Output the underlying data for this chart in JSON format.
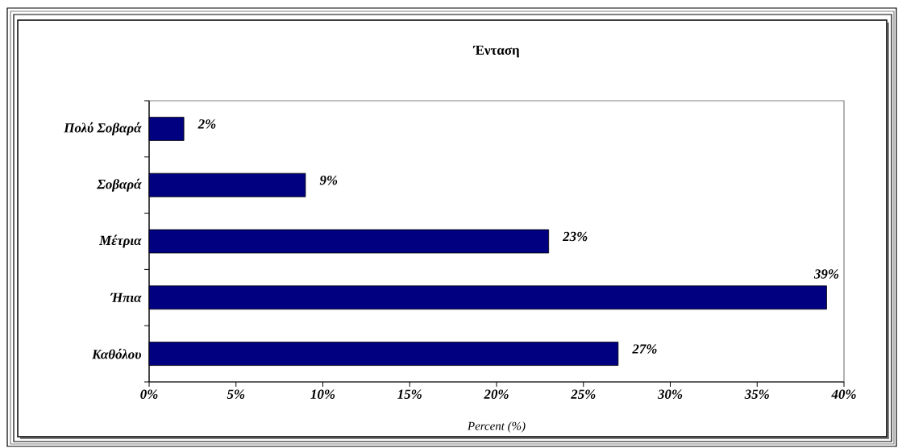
{
  "chart_data": {
    "type": "bar",
    "orientation": "horizontal",
    "title": "Ένταση",
    "xlabel": "Percent (%)",
    "categories": [
      "Πολύ Σοβαρά",
      "Σοβαρά",
      "Μέτρια",
      "Ήπια",
      "Καθόλου"
    ],
    "values": [
      2,
      9,
      23,
      39,
      27
    ],
    "value_labels": [
      "2%",
      "9%",
      "23%",
      "39%",
      "27%"
    ],
    "color": "#000080",
    "xlim": [
      0,
      40
    ],
    "xticks": [
      {
        "value": 0,
        "label": "0%"
      },
      {
        "value": 5,
        "label": "5%"
      },
      {
        "value": 10,
        "label": "10%"
      },
      {
        "value": 15,
        "label": "15%"
      },
      {
        "value": 20,
        "label": "20%"
      },
      {
        "value": 25,
        "label": "25%"
      },
      {
        "value": 30,
        "label": "30%"
      },
      {
        "value": 35,
        "label": "35%"
      },
      {
        "value": 40,
        "label": "40%"
      }
    ]
  }
}
